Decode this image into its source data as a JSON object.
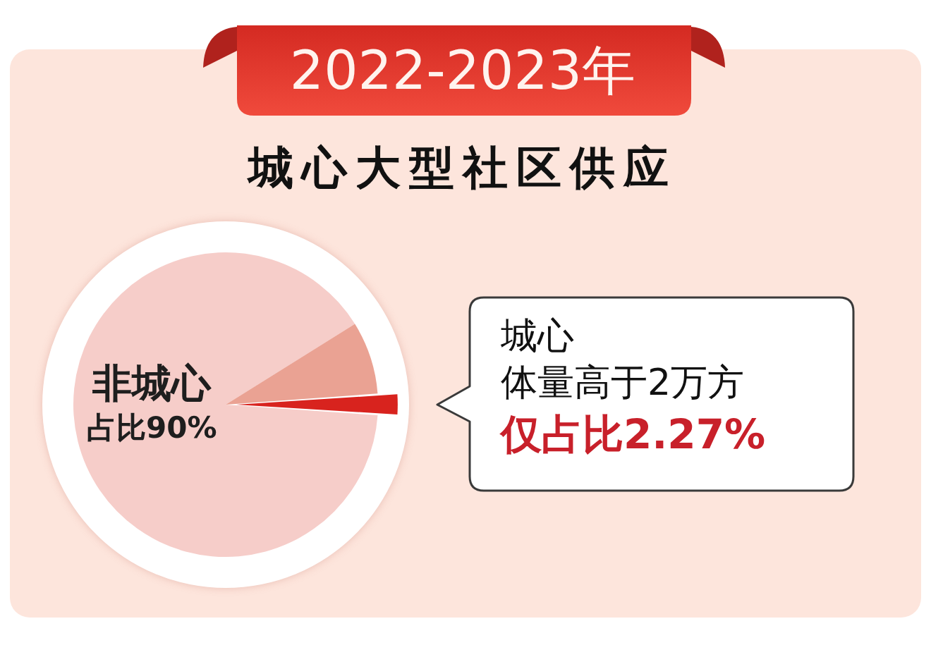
{
  "chart_data": {
    "type": "pie",
    "title": "2022-2023年",
    "subtitle": "城心大型社区供应",
    "categories": [
      "非城心",
      null,
      "城心体量高于2万方"
    ],
    "values": [
      90,
      7.73,
      2.27
    ],
    "colors": [
      "#f6cdc9",
      "#eaa293",
      "#d8231e"
    ],
    "value_labels": [
      "占比90%",
      null,
      "仅占比2.27%"
    ]
  }
}
